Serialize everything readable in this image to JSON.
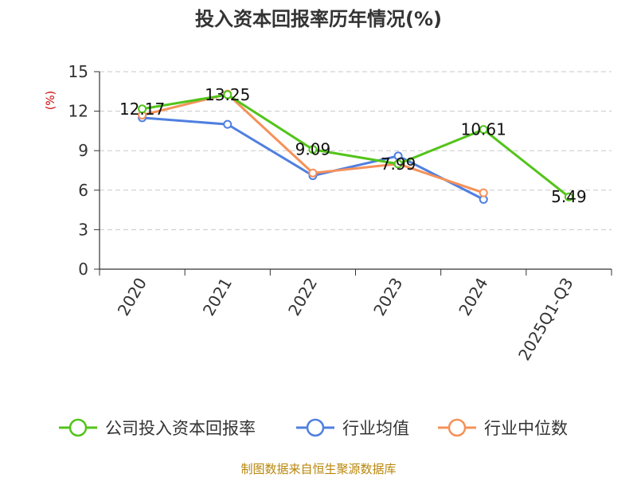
{
  "chart_data": {
    "type": "line",
    "title": "投入资本回报率历年情况(%)",
    "ylabel": "(%)",
    "xlabel": "",
    "categories": [
      "2020",
      "2021",
      "2022",
      "2023",
      "2024",
      "2025Q1-Q3"
    ],
    "ylim": [
      0,
      15
    ],
    "yticks": [
      0,
      3,
      6,
      9,
      12,
      15
    ],
    "grid": true,
    "legend_position": "bottom",
    "series": [
      {
        "name": "公司投入资本回报率",
        "color": "#52c41a",
        "values": [
          12.17,
          13.25,
          9.09,
          7.99,
          10.61,
          5.49
        ],
        "data_labels": [
          "12.17",
          "13.25",
          "9.09",
          "7.99",
          "10.61",
          "5.49"
        ]
      },
      {
        "name": "行业均值",
        "color": "#4f7fe0",
        "values": [
          11.5,
          11.0,
          7.1,
          8.6,
          5.3,
          null
        ]
      },
      {
        "name": "行业中位数",
        "color": "#f5915a",
        "values": [
          11.7,
          13.3,
          7.3,
          8.0,
          5.8,
          null
        ]
      }
    ]
  },
  "source_text": "制图数据来自恒生聚源数据库"
}
